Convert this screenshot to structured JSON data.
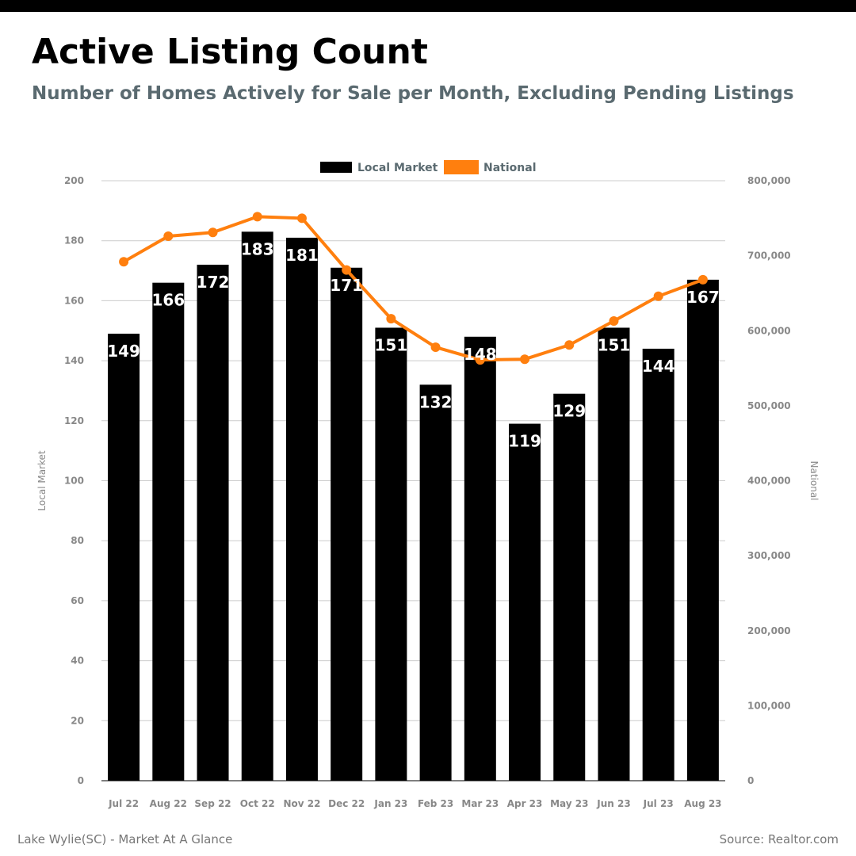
{
  "header": {
    "title": "Active Listing Count",
    "subtitle": "Number of Homes Actively for Sale per Month, Excluding Pending Listings"
  },
  "footer": {
    "left": "Lake Wylie(SC) - Market At A Glance",
    "right": "Source: Realtor.com"
  },
  "colors": {
    "bar": "#000000",
    "line": "#ff7f0e",
    "subtitle": "#5a6a70",
    "grid": "#cccccc",
    "tick": "#888888",
    "bar_label": "#ffffff"
  },
  "chart_data": {
    "type": "bar",
    "categories": [
      "Jul 22",
      "Aug 22",
      "Sep 22",
      "Oct 22",
      "Nov 22",
      "Dec 22",
      "Jan 23",
      "Feb 23",
      "Mar 23",
      "Apr 23",
      "May 23",
      "Jun 23",
      "Jul 23",
      "Aug 23"
    ],
    "series": [
      {
        "name": "Local Market",
        "type": "bar",
        "axis": "left",
        "values": [
          149,
          166,
          172,
          183,
          181,
          171,
          151,
          132,
          148,
          119,
          129,
          151,
          144,
          167
        ]
      },
      {
        "name": "National",
        "type": "line",
        "axis": "right",
        "values": [
          692000,
          726000,
          731000,
          752000,
          750000,
          681000,
          616000,
          578000,
          561000,
          562000,
          581000,
          613000,
          646000,
          668000
        ]
      }
    ],
    "ylabel_left": "Local Market",
    "ylabel_right": "National",
    "ylim_left": [
      0,
      200
    ],
    "ylim_right": [
      0,
      800000
    ],
    "yticks_left": [
      "0",
      "20",
      "40",
      "60",
      "80",
      "100",
      "120",
      "140",
      "160",
      "180",
      "200"
    ],
    "yticks_right": [
      "0",
      "100,000",
      "200,000",
      "300,000",
      "400,000",
      "500,000",
      "600,000",
      "700,000",
      "800,000"
    ],
    "grid": true,
    "legend_position": "top-center"
  }
}
